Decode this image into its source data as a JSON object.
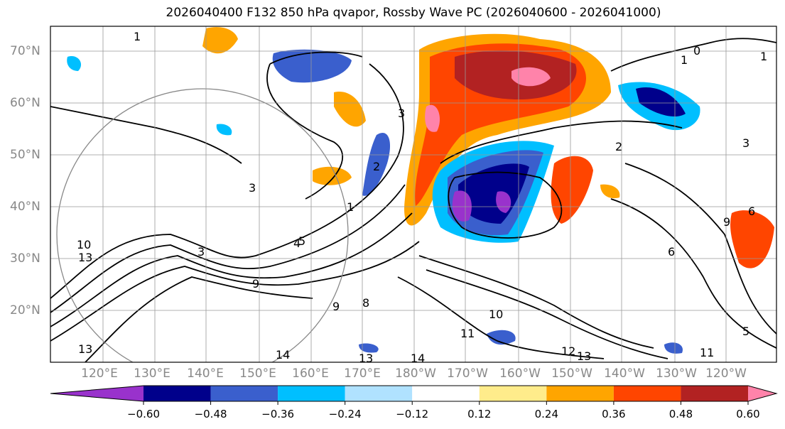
{
  "title": "2026040400 F132 850 hPa qvapor, Rossby Wave PC (2026040600 - 2026041000)",
  "lat_labels": [
    "70°N",
    "60°N",
    "50°N",
    "40°N",
    "30°N",
    "20°N"
  ],
  "lon_labels": [
    "120°E",
    "130°E",
    "140°E",
    "150°E",
    "160°E",
    "170°E",
    "180°W",
    "170°W",
    "160°W",
    "150°W",
    "140°W",
    "130°W",
    "120°W"
  ],
  "colorbar": {
    "ticks": [
      "−0.60",
      "−0.48",
      "−0.36",
      "−0.24",
      "−0.12",
      "0.12",
      "0.24",
      "0.36",
      "0.48",
      "0.60"
    ],
    "colors": [
      "#9932cc",
      "#00008b",
      "#3a5fcd",
      "#00bfff",
      "#b0e2ff",
      "#ffffff",
      "#ffec8b",
      "#ffa500",
      "#ff4500",
      "#b22222",
      "#ff83aa"
    ]
  },
  "contour_labels": [
    "1",
    "1",
    "2",
    "3",
    "3",
    "3",
    "1",
    "0",
    "1",
    "2",
    "3",
    "5",
    "9",
    "10",
    "13",
    "9",
    "8",
    "10",
    "11",
    "12",
    "13",
    "14",
    "13",
    "14",
    "13",
    "5",
    "6",
    "9",
    "4",
    "6",
    "11"
  ]
}
